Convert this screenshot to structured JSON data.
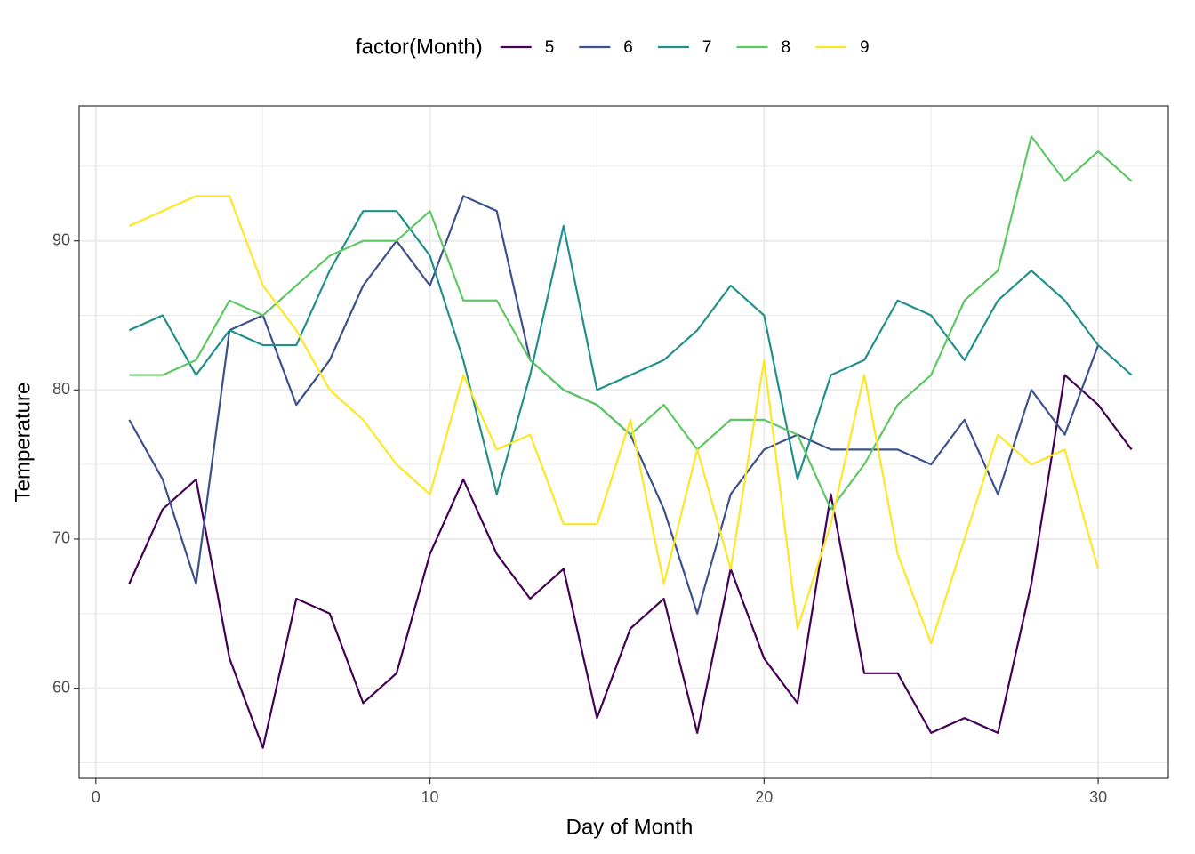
{
  "chart_data": {
    "type": "line",
    "x_label": "Day of Month",
    "y_label": "Temperature",
    "legend_title": "factor(Month)",
    "legend_position": "top",
    "x": [
      1,
      2,
      3,
      4,
      5,
      6,
      7,
      8,
      9,
      10,
      11,
      12,
      13,
      14,
      15,
      16,
      17,
      18,
      19,
      20,
      21,
      22,
      23,
      24,
      25,
      26,
      27,
      28,
      29,
      30,
      31
    ],
    "series": [
      {
        "name": "5",
        "color": "#440154",
        "values": [
          67,
          72,
          74,
          62,
          56,
          66,
          65,
          59,
          61,
          69,
          74,
          69,
          66,
          68,
          58,
          64,
          66,
          57,
          68,
          62,
          59,
          73,
          61,
          61,
          57,
          58,
          57,
          67,
          81,
          79,
          76
        ]
      },
      {
        "name": "6",
        "color": "#3B528B",
        "values": [
          78,
          74,
          67,
          84,
          85,
          79,
          82,
          87,
          90,
          87,
          93,
          92,
          82,
          80,
          79,
          77,
          72,
          65,
          73,
          76,
          77,
          76,
          76,
          76,
          75,
          78,
          73,
          80,
          77,
          83,
          null
        ]
      },
      {
        "name": "7",
        "color": "#21908C",
        "values": [
          84,
          85,
          81,
          84,
          83,
          83,
          88,
          92,
          92,
          89,
          82,
          73,
          81,
          91,
          80,
          81,
          82,
          84,
          87,
          85,
          74,
          81,
          82,
          86,
          85,
          82,
          86,
          88,
          86,
          83,
          81
        ]
      },
      {
        "name": "8",
        "color": "#5DC863",
        "values": [
          81,
          81,
          82,
          86,
          85,
          87,
          89,
          90,
          90,
          92,
          86,
          86,
          82,
          80,
          79,
          77,
          79,
          76,
          78,
          78,
          77,
          72,
          75,
          79,
          81,
          86,
          88,
          97,
          94,
          96,
          94
        ]
      },
      {
        "name": "9",
        "color": "#FDE725",
        "values": [
          91,
          92,
          93,
          93,
          87,
          84,
          80,
          78,
          75,
          73,
          81,
          76,
          77,
          71,
          71,
          78,
          67,
          76,
          68,
          82,
          64,
          71,
          81,
          69,
          63,
          70,
          77,
          75,
          76,
          68,
          null
        ]
      }
    ],
    "xlim": [
      -0.5,
      32.1
    ],
    "ylim": [
      53.95,
      99.05
    ],
    "xticks": [
      0,
      10,
      20,
      30
    ],
    "yticks": [
      60,
      70,
      80,
      90
    ],
    "x_minor_ticks": [
      5,
      15,
      25
    ],
    "y_minor_ticks": [
      55,
      65,
      75,
      85,
      95
    ],
    "grid": true
  }
}
